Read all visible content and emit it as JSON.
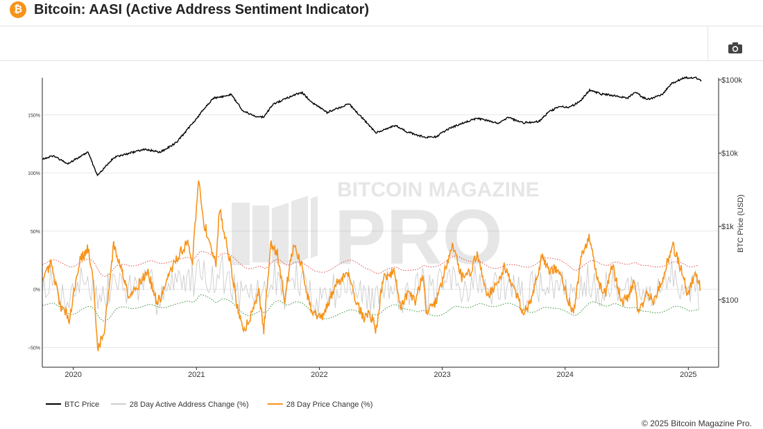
{
  "header": {
    "title": "Bitcoin: AASI (Active Address Sentiment Indicator)",
    "logo_glyph": "₿",
    "logo_color": "#f7931a"
  },
  "toolbar": {
    "camera_icon": "camera-icon"
  },
  "watermark": {
    "line1": "BITCOIN MAGAZINE",
    "line2": "PRO"
  },
  "footer": {
    "copyright": "© 2025 Bitcoin Magazine Pro."
  },
  "chart_data": {
    "type": "line",
    "x_axis": {
      "ticks": [
        "2020",
        "2021",
        "2022",
        "2023",
        "2024",
        "2025"
      ],
      "range": [
        "2019-10-01",
        "2025-04-01"
      ]
    },
    "y_left": {
      "ticks": [
        "150%",
        "100%",
        "50%",
        "0%",
        "−50%"
      ],
      "tick_values": [
        150,
        100,
        50,
        0,
        -50
      ],
      "range": [
        -67,
        180
      ]
    },
    "y_right": {
      "label": "BTC Price (USD)",
      "scale": "log",
      "ticks": [
        "$100k",
        "$10k",
        "$1k",
        "$100"
      ],
      "tick_values": [
        100000,
        10000,
        1000,
        100
      ],
      "range": [
        12,
        100000
      ]
    },
    "grid": true,
    "legend_position": "bottom-left",
    "colors": {
      "btc": "#000000",
      "active": "#cccccc",
      "price_change": "#f7931a",
      "band_upper": "#e04848",
      "band_lower": "#2e8b2e"
    },
    "series": [
      {
        "name": "BTC Price",
        "axis": "right",
        "x": [
          "2019-10-01",
          "2019-11-01",
          "2019-12-15",
          "2020-02-14",
          "2020-03-13",
          "2020-04-30",
          "2020-06-01",
          "2020-07-31",
          "2020-09-15",
          "2020-11-01",
          "2020-12-31",
          "2021-01-15",
          "2021-02-21",
          "2021-03-15",
          "2021-04-14",
          "2021-05-19",
          "2021-06-22",
          "2021-07-20",
          "2021-08-15",
          "2021-09-07",
          "2021-10-20",
          "2021-11-10",
          "2021-12-15",
          "2022-01-24",
          "2022-03-30",
          "2022-05-12",
          "2022-06-18",
          "2022-08-15",
          "2022-09-15",
          "2022-11-09",
          "2022-12-15",
          "2023-01-15",
          "2023-02-15",
          "2023-03-31",
          "2023-04-15",
          "2023-06-15",
          "2023-07-15",
          "2023-08-31",
          "2023-10-15",
          "2023-11-15",
          "2023-12-15",
          "2024-01-15",
          "2024-02-15",
          "2024-03-14",
          "2024-04-15",
          "2024-05-15",
          "2024-07-05",
          "2024-07-29",
          "2024-08-15",
          "2024-09-06",
          "2024-10-15",
          "2024-11-11",
          "2024-12-17",
          "2025-01-20",
          "2025-02-10"
        ],
        "values": [
          8300,
          9200,
          7200,
          10300,
          4900,
          8700,
          9600,
          11300,
          10300,
          13800,
          29000,
          36000,
          57000,
          58000,
          63000,
          38000,
          32000,
          31000,
          46000,
          51000,
          63000,
          67000,
          47000,
          36000,
          47000,
          29000,
          19000,
          24000,
          19800,
          16500,
          16800,
          21000,
          24000,
          28500,
          30000,
          25500,
          30500,
          26000,
          27000,
          37000,
          43000,
          42500,
          51000,
          73000,
          64000,
          62000,
          56500,
          69000,
          59000,
          54000,
          63000,
          88000,
          106000,
          108000,
          97000
        ]
      },
      {
        "name": "28 Day Active Address Change (%)",
        "axis": "left",
        "style": "noisy",
        "amplitude": 15
      },
      {
        "name": "28 Day Price Change (%)",
        "axis": "left",
        "x": [
          "2019-10-01",
          "2019-10-26",
          "2019-11-25",
          "2019-12-20",
          "2020-01-20",
          "2020-02-14",
          "2020-03-01",
          "2020-03-13",
          "2020-03-31",
          "2020-04-30",
          "2020-05-15",
          "2020-06-15",
          "2020-07-15",
          "2020-08-10",
          "2020-09-05",
          "2020-09-20",
          "2020-10-15",
          "2020-11-10",
          "2020-12-05",
          "2020-12-20",
          "2021-01-08",
          "2021-01-20",
          "2021-02-08",
          "2021-02-28",
          "2021-03-10",
          "2021-04-14",
          "2021-05-01",
          "2021-05-22",
          "2021-06-08",
          "2021-06-22",
          "2021-07-05",
          "2021-07-20",
          "2021-08-10",
          "2021-08-30",
          "2021-09-20",
          "2021-10-15",
          "2021-11-08",
          "2021-11-25",
          "2021-12-10",
          "2022-01-10",
          "2022-01-24",
          "2022-02-20",
          "2022-03-28",
          "2022-04-20",
          "2022-05-12",
          "2022-05-30",
          "2022-06-18",
          "2022-07-10",
          "2022-08-10",
          "2022-09-01",
          "2022-09-20",
          "2022-10-15",
          "2022-11-05",
          "2022-11-15",
          "2022-12-15",
          "2023-01-15",
          "2023-01-31",
          "2023-02-28",
          "2023-03-25",
          "2023-04-15",
          "2023-05-15",
          "2023-06-15",
          "2023-07-05",
          "2023-08-10",
          "2023-08-31",
          "2023-09-20",
          "2023-10-25",
          "2023-11-15",
          "2023-12-10",
          "2024-01-10",
          "2024-01-25",
          "2024-02-20",
          "2024-03-14",
          "2024-04-10",
          "2024-04-30",
          "2024-05-20",
          "2024-06-15",
          "2024-07-05",
          "2024-07-25",
          "2024-08-05",
          "2024-08-30",
          "2024-09-20",
          "2024-10-15",
          "2024-11-15",
          "2024-12-10",
          "2024-12-31",
          "2025-01-20",
          "2025-02-05"
        ],
        "values": [
          5,
          22,
          -15,
          -25,
          25,
          35,
          5,
          -50,
          -40,
          38,
          25,
          -5,
          5,
          15,
          -12,
          -5,
          15,
          30,
          40,
          25,
          95,
          60,
          42,
          20,
          70,
          20,
          -15,
          -35,
          -25,
          -12,
          -2,
          -35,
          40,
          30,
          -8,
          38,
          22,
          -5,
          -20,
          -25,
          -15,
          5,
          15,
          -10,
          -25,
          -20,
          -35,
          10,
          15,
          -15,
          -5,
          -10,
          15,
          -20,
          -10,
          22,
          40,
          10,
          15,
          30,
          -5,
          5,
          20,
          -5,
          -20,
          -12,
          30,
          15,
          18,
          -8,
          -22,
          30,
          45,
          5,
          -5,
          22,
          -10,
          -8,
          8,
          -20,
          -5,
          -10,
          8,
          38,
          18,
          -5,
          15,
          3
        ]
      },
      {
        "name": "Upper band",
        "axis": "left",
        "style": "dotted",
        "derived_from": "28 Day Active Address Change (%)"
      },
      {
        "name": "Lower band",
        "axis": "left",
        "style": "dotted",
        "derived_from": "28 Day Active Address Change (%)"
      }
    ]
  }
}
